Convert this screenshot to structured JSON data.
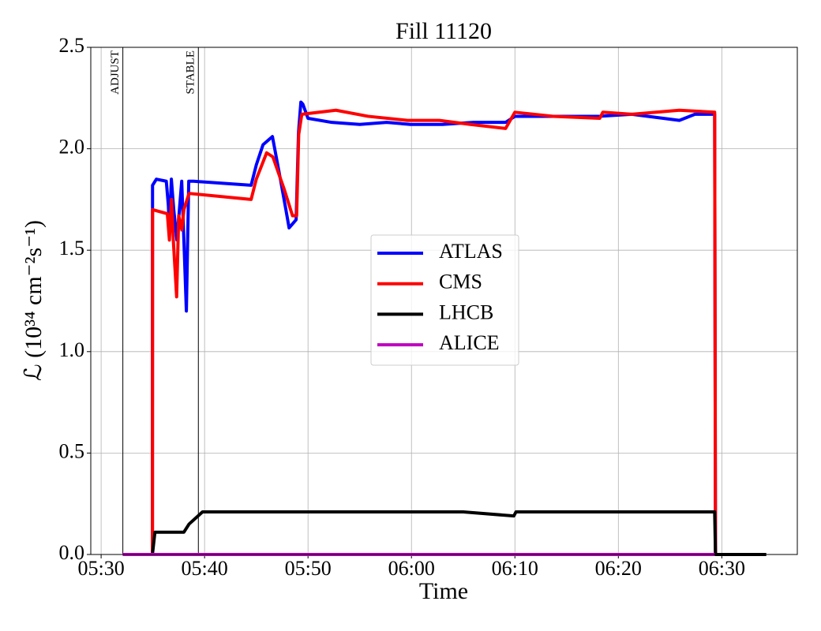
{
  "chart_data": {
    "type": "line",
    "title": "Fill 11120",
    "x_label": "Time",
    "y_label": "ℒ (10³⁴ cm⁻²s⁻¹)",
    "xlim": [
      329.0,
      397.3
    ],
    "ylim": [
      0,
      2.5
    ],
    "xticks": [
      {
        "value": 330,
        "label": "05:30"
      },
      {
        "value": 340,
        "label": "05:40"
      },
      {
        "value": 350,
        "label": "05:50"
      },
      {
        "value": 360,
        "label": "06:00"
      },
      {
        "value": 370,
        "label": "06:10"
      },
      {
        "value": 380,
        "label": "06:20"
      },
      {
        "value": 390,
        "label": "06:30"
      }
    ],
    "yticks": [
      {
        "value": 0,
        "label": "0.0"
      },
      0.5,
      {
        "value": 1,
        "label": "1.0"
      },
      1.5,
      {
        "value": 2,
        "label": "2.0"
      },
      2.5
    ],
    "grid": true,
    "legend": "center",
    "annotations": [
      {
        "text": "ADJUST",
        "x": 332.1
      },
      {
        "text": "STABLE",
        "x": 339.4
      }
    ],
    "series": [
      {
        "name": "ATLAS",
        "color": "#0000ff",
        "x": [
          332.1,
          334.96,
          334.97,
          335.34,
          336.3,
          336.5,
          336.6,
          336.79,
          337.02,
          337.33,
          337.79,
          338.0,
          338.24,
          338.47,
          338.93,
          344.5,
          345.0,
          345.65,
          346.56,
          347.33,
          347.86,
          348.17,
          348.85,
          349.08,
          349.31,
          349.5,
          350.0,
          352.3,
          355.0,
          357.6,
          359.9,
          363.0,
          366.0,
          369.1,
          370.0,
          373.7,
          378.2,
          381.3,
          385.9,
          387.4,
          389.31,
          389.39
        ],
        "values": [
          0,
          0,
          1.82,
          1.85,
          1.84,
          1.72,
          1.6,
          1.85,
          1.7,
          1.55,
          1.84,
          1.55,
          1.2,
          1.84,
          1.84,
          1.82,
          1.92,
          2.02,
          2.06,
          1.85,
          1.7,
          1.61,
          1.65,
          2.08,
          2.23,
          2.22,
          2.15,
          2.13,
          2.12,
          2.13,
          2.12,
          2.12,
          2.13,
          2.13,
          2.16,
          2.16,
          2.16,
          2.17,
          2.14,
          2.17,
          2.17,
          0
        ]
      },
      {
        "name": "CMS",
        "color": "#ff0000",
        "x": [
          334.96,
          334.97,
          336.4,
          336.6,
          336.8,
          337.0,
          337.3,
          337.5,
          337.8,
          338.0,
          338.5,
          344.5,
          345.0,
          346.0,
          346.6,
          347.7,
          348.5,
          348.9,
          349.1,
          349.4,
          352.7,
          355.8,
          359.6,
          362.7,
          365.7,
          369.1,
          370.0,
          373.7,
          378.2,
          378.5,
          381.3,
          385.9,
          389.31,
          389.39
        ],
        "values": [
          0,
          1.7,
          1.68,
          1.55,
          1.75,
          1.53,
          1.27,
          1.67,
          1.6,
          1.7,
          1.78,
          1.75,
          1.85,
          1.98,
          1.96,
          1.8,
          1.67,
          1.67,
          2.07,
          2.17,
          2.19,
          2.16,
          2.14,
          2.14,
          2.12,
          2.1,
          2.18,
          2.16,
          2.15,
          2.18,
          2.17,
          2.19,
          2.18,
          0
        ]
      },
      {
        "name": "LHCB",
        "color": "#000000",
        "x": [
          332.1,
          334.96,
          335.2,
          338.0,
          338.5,
          339.8,
          345.0,
          355.0,
          365.0,
          369.9,
          370.1,
          380.0,
          389.31,
          389.39,
          394.3
        ],
        "values": [
          0,
          0,
          0.11,
          0.11,
          0.15,
          0.21,
          0.21,
          0.21,
          0.21,
          0.19,
          0.21,
          0.21,
          0.21,
          0,
          0
        ]
      },
      {
        "name": "ALICE",
        "color": "#bf00bf",
        "x": [
          332.1,
          389.31
        ],
        "values": [
          0,
          0
        ]
      }
    ]
  }
}
